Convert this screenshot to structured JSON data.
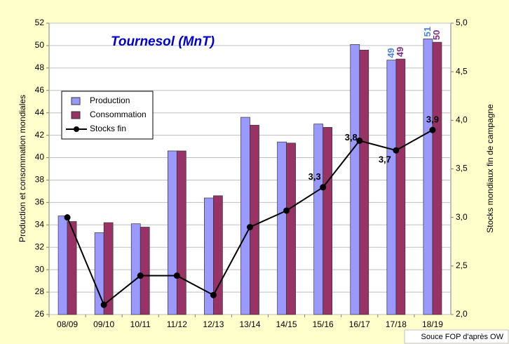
{
  "chart_data": {
    "type": "bar",
    "title": "Tournesol (MnT)",
    "y_label": "Production et consommation mondiales",
    "y2_label": "Stocks mondiaux fin de campagne",
    "source": "Souce FOP d'après OW",
    "categories": [
      "08/09",
      "09/10",
      "10/11",
      "11/12",
      "12/13",
      "13/14",
      "14/15",
      "15/16",
      "16/17",
      "17/18",
      "18/19"
    ],
    "series": [
      {
        "name": "Production",
        "color": "#9999ff",
        "values": [
          34.8,
          33.3,
          34.1,
          40.6,
          36.4,
          43.6,
          41.4,
          43.0,
          50.1,
          48.7,
          50.6
        ],
        "value_labels": [
          null,
          null,
          null,
          null,
          null,
          null,
          null,
          null,
          null,
          "49",
          "51"
        ]
      },
      {
        "name": "Consommation",
        "color": "#993366",
        "values": [
          34.3,
          34.2,
          33.8,
          40.6,
          36.6,
          42.9,
          41.3,
          42.7,
          49.6,
          48.8,
          50.3
        ],
        "value_labels": [
          null,
          null,
          null,
          null,
          null,
          null,
          null,
          null,
          null,
          "49",
          "50"
        ]
      },
      {
        "name": "Stocks fin",
        "color": "#000000",
        "axis": "y2",
        "type": "line",
        "values": [
          3.0,
          2.1,
          2.4,
          2.4,
          2.2,
          2.9,
          3.07,
          3.31,
          3.79,
          3.69,
          3.9
        ],
        "value_labels": [
          null,
          null,
          null,
          null,
          null,
          null,
          null,
          "3,3",
          "3,8",
          "3,7",
          "3,9"
        ]
      }
    ],
    "ylim": [
      26,
      52
    ],
    "yticks": [
      26,
      28,
      30,
      32,
      34,
      36,
      38,
      40,
      42,
      44,
      46,
      48,
      50,
      52
    ],
    "y2lim": [
      2.0,
      5.0
    ],
    "y2ticks": [
      {
        "value": 2.0,
        "label": "2,0"
      },
      {
        "value": 2.5,
        "label": "2,5"
      },
      {
        "value": 3.0,
        "label": "3,0"
      },
      {
        "value": 3.5,
        "label": "3,5"
      },
      {
        "value": 4.0,
        "label": "4,0"
      },
      {
        "value": 4.5,
        "label": "4,5"
      },
      {
        "value": 5.0,
        "label": "5,0"
      }
    ],
    "grid": true,
    "legend": "upper left"
  }
}
